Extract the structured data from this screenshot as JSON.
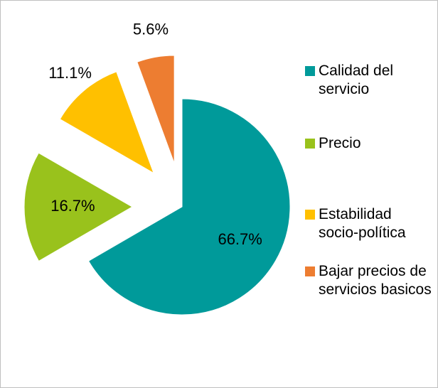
{
  "chart_data": {
    "type": "pie",
    "categories": [
      "Calidad del servicio",
      "Precio",
      "Estabilidad socio-política",
      "Bajar precios de servicios basicos"
    ],
    "values": [
      66.7,
      16.7,
      11.1,
      5.6
    ],
    "value_labels": [
      "66.7%",
      "16.7%",
      "11.1%",
      "5.6%"
    ],
    "colors": [
      "#009a9a",
      "#99c21c",
      "#ffc000",
      "#ed7d31"
    ],
    "legend": "right"
  }
}
